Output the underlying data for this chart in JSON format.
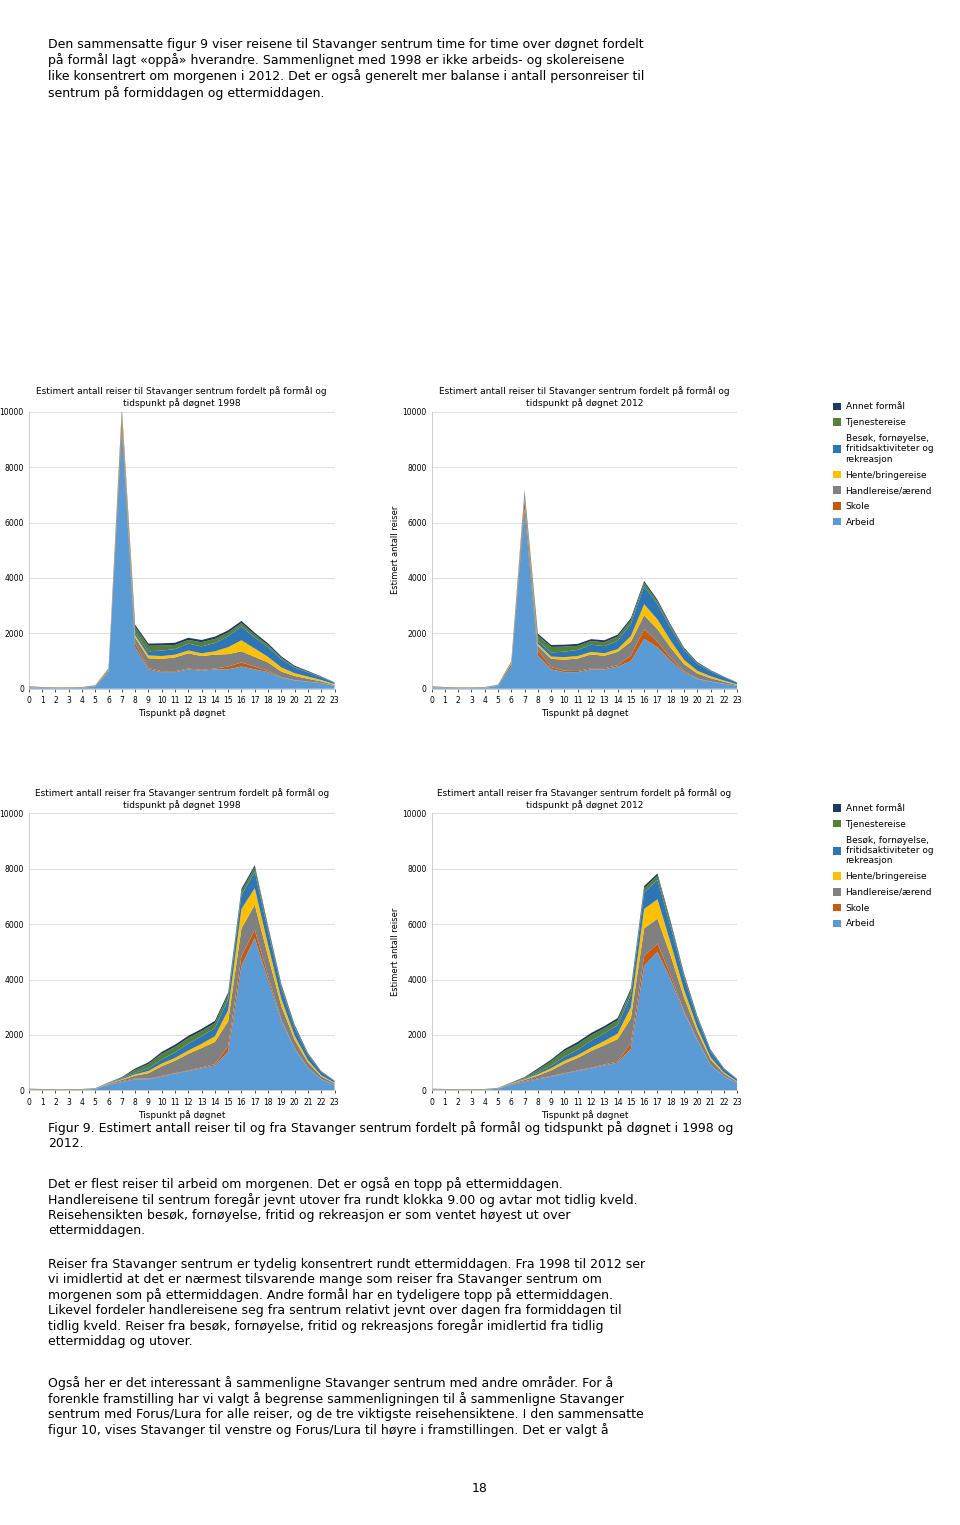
{
  "hours": [
    0,
    1,
    2,
    3,
    4,
    5,
    6,
    7,
    8,
    9,
    10,
    11,
    12,
    13,
    14,
    15,
    16,
    17,
    18,
    19,
    20,
    21,
    22,
    23
  ],
  "legend_labels": [
    "Annet formål",
    "Tjenestereise",
    "Besøk, fornøyelse,\nfritidsaktiviteter og\nrekreasjon",
    "Hente/bringereise",
    "Handlereise/ærend",
    "Skole",
    "Arbeid"
  ],
  "legend_colors": [
    "#1f3864",
    "#538135",
    "#2e75b6",
    "#ffc000",
    "#808080",
    "#c55a11",
    "#5b9bd5"
  ],
  "titles": [
    [
      "Estimert antall reiser til Stavanger sentrum fordelt på formål og\ntidspunkt på døgnet 1998",
      "Estimert antall reiser til Stavanger sentrum fordelt på formål og\ntidspunkt på døgnet 2012"
    ],
    [
      "Estimert antall reiser fra Stavanger sentrum fordelt på formål og\ntidspunkt på døgnet 1998",
      "Estimert antall reiser fra Stavanger sentrum fordelt på formål og\ntidspunkt på døgnet 2012"
    ]
  ],
  "ylabel": "Estimert antall reiser",
  "xlabel": "Tispunkt på døgnet",
  "ylim": [
    0,
    10000
  ],
  "yticks": [
    0,
    2000,
    4000,
    6000,
    8000,
    10000
  ],
  "top_text": "Den sammensatte figur 9 viser reisene til Stavanger sentrum time for time over døgnet fordelt\npå formål lagt «oppå» hverandre. Sammenlignet med 1998 er ikke arbeids- og skolereisene\nlike konsentrert om morgenen i 2012. Det er også generelt mer balanse i antall personreiser til\nsentrum på formiddagen og ettermiddagen.",
  "bottom_texts": [
    "Figur 9. Estimert antall reiser til og fra Stavanger sentrum fordelt på formål og tidspunkt på døgnet i 1998 og\n2012.",
    "Det er flest reiser til arbeid om morgenen. Det er også en topp på ettermiddagen.\nHandlereisene til sentrum foregår jevnt utover fra rundt klokka 9.00 og avtar mot tidlig kveld.\nReisehensikten besøk, fornøyelse, fritid og rekreasjon er som ventet høyest ut over\nettermiddagen.",
    "Reiser fra Stavanger sentrum er tydelig konsentrert rundt ettermiddagen. Fra 1998 til 2012 ser\nvi imidlertid at det er nærmest tilsvarende mange som reiser fra Stavanger sentrum om\nmorgenen som på ettermiddagen. Andre formål har en tydeligere topp på ettermiddagen.\nLikevel fordeler handlereisene seg fra sentrum relativt jevnt over dagen fra formiddagen til\ntidlig kveld. Reiser fra besøk, fornøyelse, fritid og rekreasjons foregår imidlertid fra tidlig\nettermiddag og utover.",
    "Også her er det interessant å sammenligne Stavanger sentrum med andre områder. For å\nforenkle framstilling har vi valgt å begrense sammenligningen til å sammenligne Stavanger\nsentrum med Forus/Lura for alle reiser, og de tre viktigste reisehensiktene. I den sammensatte\nfigur 10, vises Stavanger til venstre og Forus/Lura til høyre i framstillingen. Det er valgt å",
    "18"
  ],
  "til_1998": {
    "Arbeid": [
      50,
      30,
      20,
      20,
      30,
      80,
      600,
      9400,
      1500,
      700,
      600,
      600,
      700,
      650,
      700,
      700,
      800,
      700,
      600,
      400,
      300,
      250,
      200,
      100
    ],
    "Skole": [
      5,
      5,
      5,
      5,
      5,
      10,
      50,
      400,
      150,
      50,
      30,
      30,
      30,
      30,
      30,
      100,
      150,
      100,
      50,
      20,
      10,
      10,
      5,
      5
    ],
    "Handlereise": [
      10,
      5,
      5,
      5,
      5,
      10,
      30,
      100,
      200,
      350,
      450,
      500,
      550,
      500,
      500,
      450,
      400,
      350,
      300,
      200,
      150,
      100,
      60,
      30
    ],
    "Hente": [
      5,
      5,
      5,
      5,
      5,
      5,
      20,
      50,
      80,
      100,
      100,
      100,
      100,
      100,
      120,
      250,
      400,
      300,
      200,
      150,
      100,
      80,
      50,
      30
    ],
    "Besok": [
      10,
      5,
      5,
      5,
      5,
      10,
      20,
      80,
      100,
      150,
      200,
      200,
      250,
      250,
      300,
      400,
      500,
      400,
      350,
      300,
      200,
      150,
      100,
      50
    ],
    "Tjeneste": [
      5,
      5,
      5,
      5,
      5,
      5,
      10,
      80,
      200,
      200,
      180,
      150,
      130,
      150,
      150,
      130,
      120,
      100,
      80,
      50,
      30,
      20,
      10,
      5
    ],
    "Annet": [
      5,
      5,
      5,
      5,
      5,
      5,
      10,
      50,
      80,
      80,
      80,
      80,
      80,
      80,
      80,
      80,
      80,
      70,
      60,
      50,
      40,
      30,
      20,
      10
    ]
  },
  "til_2012": {
    "Arbeid": [
      50,
      30,
      20,
      20,
      30,
      100,
      800,
      6500,
      1200,
      700,
      600,
      600,
      700,
      700,
      800,
      1000,
      1800,
      1500,
      1000,
      600,
      350,
      250,
      180,
      100
    ],
    "Skole": [
      5,
      5,
      5,
      5,
      5,
      10,
      80,
      300,
      200,
      80,
      50,
      40,
      40,
      40,
      50,
      200,
      350,
      200,
      100,
      40,
      20,
      10,
      5,
      5
    ],
    "Handlereise": [
      10,
      5,
      5,
      5,
      5,
      10,
      30,
      80,
      150,
      300,
      400,
      450,
      500,
      450,
      480,
      500,
      500,
      450,
      380,
      250,
      180,
      120,
      70,
      30
    ],
    "Hente": [
      5,
      5,
      5,
      5,
      5,
      5,
      20,
      50,
      70,
      80,
      90,
      90,
      90,
      90,
      100,
      200,
      400,
      350,
      250,
      150,
      100,
      70,
      40,
      20
    ],
    "Besok": [
      10,
      5,
      5,
      5,
      5,
      10,
      30,
      100,
      120,
      150,
      200,
      220,
      260,
      260,
      300,
      450,
      650,
      550,
      450,
      350,
      250,
      180,
      120,
      60
    ],
    "Tjeneste": [
      5,
      5,
      5,
      5,
      5,
      5,
      15,
      80,
      180,
      200,
      180,
      150,
      130,
      140,
      150,
      130,
      120,
      100,
      80,
      50,
      30,
      20,
      10,
      5
    ],
    "Annet": [
      5,
      5,
      5,
      5,
      5,
      5,
      10,
      50,
      70,
      70,
      70,
      70,
      70,
      70,
      70,
      70,
      70,
      60,
      50,
      40,
      30,
      20,
      15,
      10
    ]
  },
  "fra_1998": {
    "Arbeid": [
      30,
      20,
      15,
      15,
      20,
      50,
      200,
      300,
      400,
      400,
      500,
      600,
      700,
      800,
      900,
      1400,
      4500,
      5500,
      4000,
      2500,
      1500,
      800,
      400,
      200
    ],
    "Skole": [
      5,
      5,
      5,
      5,
      5,
      5,
      20,
      30,
      30,
      20,
      20,
      20,
      20,
      30,
      50,
      200,
      350,
      300,
      150,
      50,
      20,
      10,
      5,
      5
    ],
    "Handlereise": [
      5,
      5,
      5,
      5,
      5,
      5,
      20,
      50,
      100,
      200,
      350,
      450,
      600,
      700,
      800,
      900,
      1000,
      900,
      700,
      500,
      300,
      200,
      100,
      50
    ],
    "Hente": [
      5,
      5,
      5,
      5,
      5,
      5,
      10,
      20,
      50,
      80,
      100,
      100,
      120,
      150,
      200,
      400,
      700,
      600,
      400,
      250,
      150,
      80,
      40,
      20
    ],
    "Besok": [
      5,
      5,
      5,
      5,
      5,
      5,
      15,
      30,
      60,
      100,
      150,
      200,
      250,
      280,
      300,
      400,
      500,
      600,
      500,
      400,
      300,
      200,
      120,
      60
    ],
    "Tjeneste": [
      5,
      5,
      5,
      5,
      5,
      5,
      10,
      30,
      100,
      150,
      200,
      200,
      200,
      180,
      180,
      150,
      150,
      150,
      120,
      80,
      50,
      30,
      15,
      10
    ],
    "Annet": [
      5,
      5,
      5,
      5,
      5,
      5,
      10,
      20,
      50,
      60,
      70,
      80,
      80,
      80,
      80,
      80,
      80,
      80,
      70,
      60,
      50,
      30,
      15,
      10
    ]
  },
  "fra_2012": {
    "Arbeid": [
      30,
      20,
      15,
      15,
      20,
      60,
      200,
      300,
      400,
      500,
      600,
      700,
      800,
      900,
      1000,
      1500,
      4500,
      5000,
      4000,
      2800,
      1800,
      900,
      500,
      250
    ],
    "Skole": [
      5,
      5,
      5,
      5,
      5,
      5,
      20,
      30,
      30,
      20,
      20,
      20,
      20,
      30,
      50,
      200,
      350,
      300,
      150,
      50,
      20,
      10,
      5,
      5
    ],
    "Handlereise": [
      5,
      5,
      5,
      5,
      5,
      5,
      20,
      50,
      100,
      200,
      350,
      450,
      600,
      700,
      800,
      900,
      1000,
      900,
      700,
      500,
      300,
      200,
      100,
      50
    ],
    "Hente": [
      5,
      5,
      5,
      5,
      5,
      5,
      10,
      20,
      50,
      80,
      100,
      100,
      120,
      150,
      200,
      400,
      700,
      700,
      450,
      280,
      150,
      80,
      40,
      20
    ],
    "Besok": [
      5,
      5,
      5,
      5,
      5,
      5,
      15,
      30,
      60,
      100,
      150,
      200,
      250,
      280,
      300,
      450,
      600,
      700,
      600,
      450,
      320,
      220,
      130,
      65
    ],
    "Tjeneste": [
      5,
      5,
      5,
      5,
      5,
      5,
      10,
      30,
      100,
      150,
      200,
      200,
      200,
      180,
      180,
      150,
      150,
      150,
      120,
      80,
      50,
      30,
      15,
      10
    ],
    "Annet": [
      5,
      5,
      5,
      5,
      5,
      5,
      10,
      20,
      50,
      60,
      70,
      80,
      80,
      80,
      80,
      80,
      80,
      80,
      70,
      60,
      50,
      30,
      15,
      10
    ]
  },
  "background_color": "#ffffff",
  "grid_color": "#d0d0d0"
}
